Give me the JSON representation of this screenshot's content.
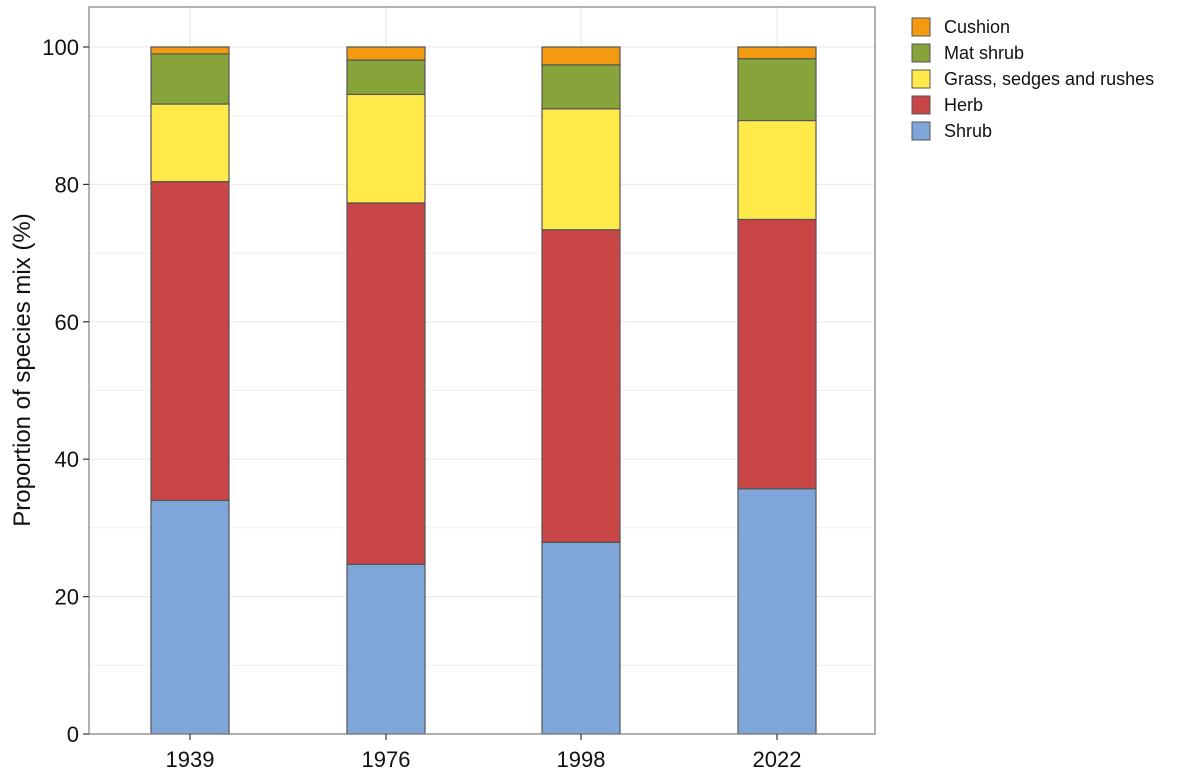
{
  "chart_data": {
    "type": "bar",
    "stacked": true,
    "title": "",
    "xlabel": "",
    "ylabel": "Proportion of species mix (%)",
    "categories": [
      "1939",
      "1976",
      "1998",
      "2022"
    ],
    "ylim": [
      0,
      100
    ],
    "yticks": [
      0,
      20,
      40,
      60,
      80,
      100
    ],
    "grid": true,
    "legend_position": "top-right, outside plot",
    "series": [
      {
        "name": "Shrub",
        "color": "#7ea6d9",
        "values": [
          34.0,
          24.7,
          27.9,
          35.7
        ]
      },
      {
        "name": "Herb",
        "color": "#c84646",
        "values": [
          46.4,
          52.6,
          45.5,
          39.2
        ]
      },
      {
        "name": "Grass, sedges and rushes",
        "color": "#ffea4a",
        "values": [
          11.3,
          15.8,
          17.6,
          14.4
        ]
      },
      {
        "name": "Mat shrub",
        "color": "#87a43a",
        "values": [
          7.3,
          5.0,
          6.4,
          9.0
        ]
      },
      {
        "name": "Cushion",
        "color": "#f39a11",
        "values": [
          1.0,
          1.9,
          2.6,
          1.7
        ]
      }
    ],
    "legend_order": [
      "Cushion",
      "Mat shrub",
      "Grass, sedges and rushes",
      "Herb",
      "Shrub"
    ]
  }
}
